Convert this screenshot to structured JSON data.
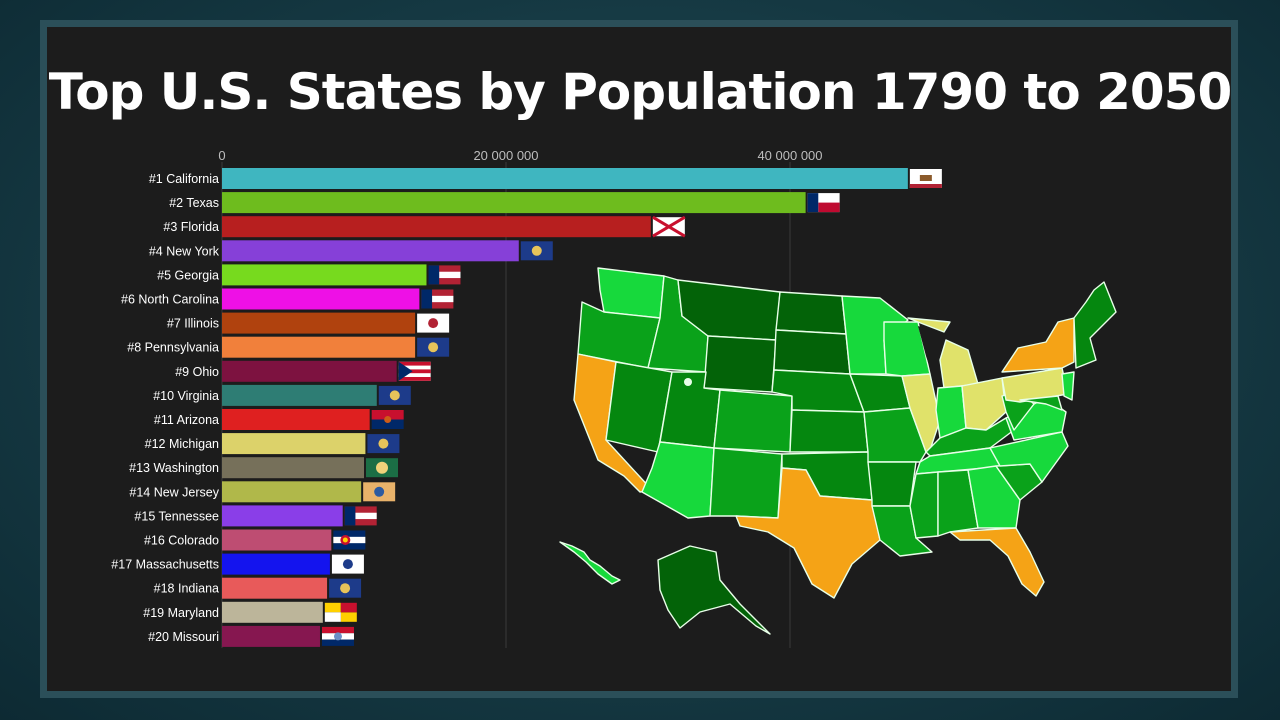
{
  "title": "Top U.S. States by Population 1790 to 2050",
  "chart_data": {
    "type": "bar",
    "orientation": "horizontal",
    "title": "Top U.S. States by Population 1790 to 2050",
    "xlabel": "",
    "ylabel": "",
    "xlim": [
      0,
      51000000
    ],
    "grid": true,
    "xticks": [
      {
        "value": 0,
        "label": "0"
      },
      {
        "value": 20000000,
        "label": "20 000 000"
      },
      {
        "value": 40000000,
        "label": "40 000 000"
      }
    ],
    "categories": [
      "#1 California",
      "#2 Texas",
      "#3 Florida",
      "#4 New York",
      "#5 Georgia",
      "#6 North Carolina",
      "#7 Illinois",
      "#8 Pennsylvania",
      "#9 Ohio",
      "#10 Virginia",
      "#11 Arizona",
      "#12 Michigan",
      "#13 Washington",
      "#14 New Jersey",
      "#15 Tennessee",
      "#16 Colorado",
      "#17 Massachusetts",
      "#18 Indiana",
      "#19 Maryland",
      "#20 Missouri"
    ],
    "values": [
      48300000,
      41100000,
      30200000,
      20900000,
      14400000,
      13900000,
      13600000,
      13600000,
      12300000,
      10900000,
      10400000,
      10100000,
      10000000,
      9800000,
      8500000,
      7700000,
      7600000,
      7400000,
      7100000,
      6900000
    ],
    "bar_colors": [
      "#3fb6c0",
      "#6ebc1e",
      "#b71f1f",
      "#8640d8",
      "#77da1e",
      "#ee10e6",
      "#b0420e",
      "#f1803b",
      "#7d1240",
      "#2e7d74",
      "#df2020",
      "#dcd26a",
      "#76705a",
      "#b0b84a",
      "#8a3ee8",
      "#be4d72",
      "#1414ee",
      "#e85a5a",
      "#bcb59a",
      "#861750"
    ],
    "flag_icons": [
      "california-flag-icon",
      "texas-flag-icon",
      "florida-flag-icon",
      "new-york-flag-icon",
      "georgia-flag-icon",
      "north-carolina-flag-icon",
      "illinois-flag-icon",
      "pennsylvania-flag-icon",
      "ohio-flag-icon",
      "virginia-flag-icon",
      "arizona-flag-icon",
      "michigan-flag-icon",
      "washington-flag-icon",
      "new-jersey-flag-icon",
      "tennessee-flag-icon",
      "colorado-flag-icon",
      "massachusetts-flag-icon",
      "indiana-flag-icon",
      "maryland-flag-icon",
      "missouri-flag-icon"
    ]
  },
  "map": {
    "icon": "us-states-choropleth-map-icon",
    "colors": {
      "rank_top_3": "#f5a316",
      "rank_4_to_8": "#e0e26a",
      "mid": "#17d93c",
      "lower": "#0aa21a",
      "low": "#05870f",
      "lowest": "#036308",
      "border": "#e8ffe8"
    }
  }
}
